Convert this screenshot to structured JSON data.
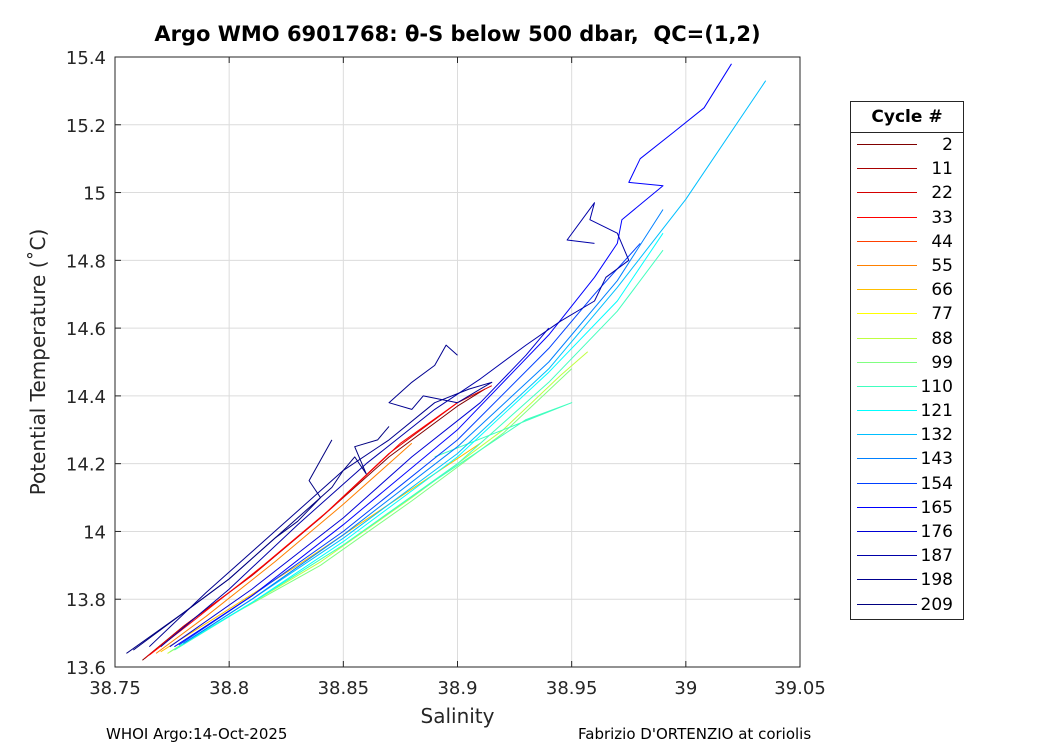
{
  "chart_data": {
    "type": "line",
    "title": "Argo WMO 6901768: θ-S below 500 dbar,  QC=(1,2)",
    "xlabel": "Salinity",
    "ylabel": "Potential Temperature (˚C)",
    "xlim": [
      38.75,
      39.05
    ],
    "ylim": [
      13.6,
      15.4
    ],
    "xticks": [
      "38.75",
      "38.8",
      "38.85",
      "38.9",
      "38.95",
      "39",
      "39.05"
    ],
    "yticks": [
      "13.6",
      "13.8",
      "14",
      "14.2",
      "14.4",
      "14.6",
      "14.8",
      "15",
      "15.2",
      "15.4"
    ],
    "grid": true,
    "legend": {
      "title": "Cycle #",
      "placement": "outside-right",
      "entries": [
        {
          "label": "2",
          "color": "#800000"
        },
        {
          "label": "11",
          "color": "#a80000"
        },
        {
          "label": "22",
          "color": "#d40000"
        },
        {
          "label": "33",
          "color": "#ff0000"
        },
        {
          "label": "44",
          "color": "#ff4000"
        },
        {
          "label": "55",
          "color": "#ff8000"
        },
        {
          "label": "66",
          "color": "#ffbf00"
        },
        {
          "label": "77",
          "color": "#ffff00"
        },
        {
          "label": "88",
          "color": "#bfff40"
        },
        {
          "label": "99",
          "color": "#80ff80"
        },
        {
          "label": "110",
          "color": "#40ffbf"
        },
        {
          "label": "121",
          "color": "#00ffff"
        },
        {
          "label": "132",
          "color": "#00bfff"
        },
        {
          "label": "143",
          "color": "#0080ff"
        },
        {
          "label": "154",
          "color": "#0040ff"
        },
        {
          "label": "165",
          "color": "#0000ff"
        },
        {
          "label": "176",
          "color": "#0000d4"
        },
        {
          "label": "187",
          "color": "#0000a8"
        },
        {
          "label": "198",
          "color": "#00008f"
        },
        {
          "label": "209",
          "color": "#000080"
        }
      ]
    },
    "series": [
      {
        "color": "#800000",
        "x": [
          38.762,
          38.78,
          38.81,
          38.84,
          38.87,
          38.9,
          38.912
        ],
        "y": [
          13.62,
          13.72,
          13.87,
          14.04,
          14.22,
          14.37,
          14.42
        ]
      },
      {
        "color": "#d40000",
        "x": [
          38.763,
          38.78,
          38.81,
          38.84,
          38.87,
          38.9,
          38.915
        ],
        "y": [
          13.625,
          13.72,
          13.87,
          14.04,
          14.23,
          14.38,
          14.43
        ]
      },
      {
        "color": "#ff0000",
        "x": [
          38.765,
          38.785,
          38.815,
          38.845,
          38.875,
          38.9
        ],
        "y": [
          13.635,
          13.74,
          13.9,
          14.07,
          14.26,
          14.38
        ]
      },
      {
        "color": "#ff8000",
        "x": [
          38.768,
          38.79,
          38.82,
          38.85,
          38.88
        ],
        "y": [
          13.64,
          13.75,
          13.91,
          14.08,
          14.26
        ]
      },
      {
        "color": "#ffbf00",
        "x": [
          38.77,
          38.795,
          38.83,
          38.87,
          38.91
        ],
        "y": [
          13.645,
          13.75,
          13.9,
          14.08,
          14.26
        ]
      },
      {
        "color": "#bfff40",
        "x": [
          38.773,
          38.8,
          38.84,
          38.88,
          38.92,
          38.945,
          38.957
        ],
        "y": [
          13.64,
          13.75,
          13.91,
          14.1,
          14.3,
          14.46,
          14.53
        ]
      },
      {
        "color": "#80ff80",
        "x": [
          38.774,
          38.8,
          38.84,
          38.88,
          38.92,
          38.95
        ],
        "y": [
          13.645,
          13.75,
          13.9,
          14.09,
          14.29,
          14.48
        ]
      },
      {
        "color": "#40ffbf",
        "x": [
          38.776,
          38.81,
          38.85,
          38.89,
          38.93,
          38.95,
          38.92,
          38.89
        ],
        "y": [
          13.65,
          13.79,
          13.96,
          14.15,
          14.33,
          14.38,
          14.3,
          14.22
        ]
      },
      {
        "color": "#40ffbf",
        "x": [
          38.778,
          38.81,
          38.85,
          38.9,
          38.94,
          38.97,
          38.99
        ],
        "y": [
          13.66,
          13.79,
          13.96,
          14.2,
          14.44,
          14.65,
          14.83
        ]
      },
      {
        "color": "#00ffff",
        "x": [
          38.779,
          38.81,
          38.85,
          38.9,
          38.94,
          38.97,
          38.99
        ],
        "y": [
          13.665,
          13.79,
          13.97,
          14.22,
          14.47,
          14.68,
          14.88
        ]
      },
      {
        "color": "#00bfff",
        "x": [
          38.78,
          38.81,
          38.85,
          38.9,
          38.94,
          38.97,
          39.0,
          39.035
        ],
        "y": [
          13.67,
          13.8,
          13.98,
          14.23,
          14.48,
          14.72,
          14.98,
          15.33
        ]
      },
      {
        "color": "#0080ff",
        "x": [
          38.78,
          38.81,
          38.85,
          38.9,
          38.94,
          38.97,
          38.99
        ],
        "y": [
          13.67,
          13.8,
          13.99,
          14.25,
          14.5,
          14.74,
          14.95
        ]
      },
      {
        "color": "#0040ff",
        "x": [
          38.778,
          38.81,
          38.85,
          38.9,
          38.94,
          38.96,
          38.98
        ],
        "y": [
          13.665,
          13.81,
          14.0,
          14.27,
          14.54,
          14.7,
          14.85
        ]
      },
      {
        "color": "#0000ff",
        "x": [
          38.776,
          38.81,
          38.85,
          38.9,
          38.94,
          38.96,
          38.97,
          38.972,
          38.99,
          38.975,
          38.98,
          38.995,
          39.008,
          39.02
        ],
        "y": [
          13.66,
          13.81,
          14.02,
          14.3,
          14.58,
          14.75,
          14.85,
          14.92,
          15.02,
          15.03,
          15.1,
          15.18,
          15.25,
          15.38
        ]
      },
      {
        "color": "#0000d4",
        "x": [
          38.774,
          38.81,
          38.85,
          38.88,
          38.91,
          38.93,
          38.94
        ],
        "y": [
          13.66,
          13.83,
          14.04,
          14.22,
          14.38,
          14.52,
          14.6
        ]
      },
      {
        "color": "#0000a8",
        "x": [
          38.77,
          38.8,
          38.83,
          38.86,
          38.89,
          38.91,
          38.93,
          38.945,
          38.96,
          38.965,
          38.975,
          38.97,
          38.958,
          38.96,
          38.948,
          38.96
        ],
        "y": [
          13.66,
          13.83,
          14.02,
          14.2,
          14.36,
          14.45,
          14.55,
          14.62,
          14.68,
          14.75,
          14.8,
          14.88,
          14.92,
          14.97,
          14.86,
          14.85
        ]
      },
      {
        "color": "#00008f",
        "x": [
          38.765,
          38.79,
          38.82,
          38.85,
          38.87,
          38.89,
          38.905,
          38.915,
          38.91,
          38.9,
          38.885,
          38.88,
          38.87,
          38.88,
          38.89,
          38.895,
          38.9
        ],
        "y": [
          13.66,
          13.82,
          14.0,
          14.18,
          14.27,
          14.38,
          14.42,
          14.44,
          14.42,
          14.38,
          14.4,
          14.36,
          14.38,
          14.44,
          14.49,
          14.55,
          14.52
        ]
      },
      {
        "color": "#000080",
        "x": [
          38.758,
          38.78,
          38.8,
          38.82,
          38.835,
          38.845,
          38.85,
          38.855,
          38.86,
          38.855,
          38.865,
          38.87
        ],
        "y": [
          13.65,
          13.76,
          13.86,
          13.98,
          14.07,
          14.13,
          14.18,
          14.22,
          14.17,
          14.25,
          14.27,
          14.31
        ]
      },
      {
        "color": "#000080",
        "x": [
          38.755,
          38.78,
          38.8,
          38.82,
          38.83,
          38.84,
          38.835,
          38.84,
          38.845
        ],
        "y": [
          13.64,
          13.76,
          13.86,
          13.98,
          14.03,
          14.1,
          14.15,
          14.21,
          14.27
        ]
      }
    ]
  },
  "footer": {
    "left": "WHOI Argo:14-Oct-2025",
    "right": "Fabrizio D'ORTENZIO at coriolis"
  }
}
